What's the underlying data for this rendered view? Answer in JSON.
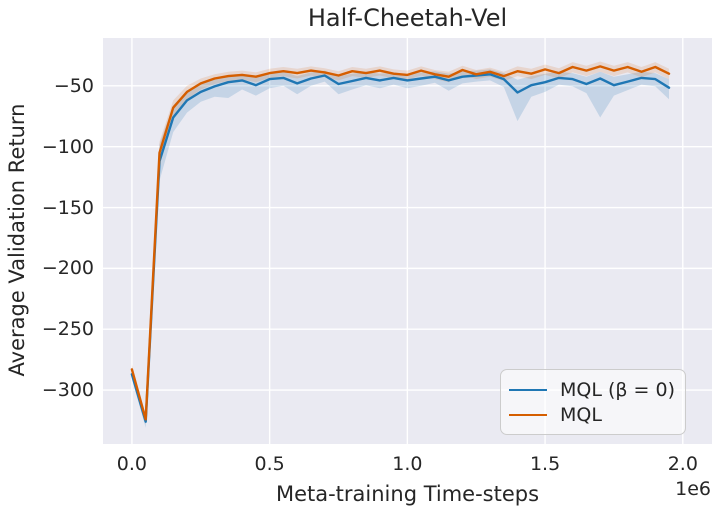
{
  "colors": {
    "plot_background": "#eaeaf2",
    "grid": "#ffffff",
    "text": "#262626",
    "legend_border": "#cccccc",
    "series_blue": "#1f77b4",
    "series_orange": "#d55e00"
  },
  "chart_data": {
    "type": "line",
    "title": "Half-Cheetah-Vel",
    "xlabel": "Meta-training Time-steps",
    "ylabel": "Average Validation Return",
    "x_offset_label": "1e6",
    "x_units_multiplier": 1000000,
    "grid": true,
    "legend_position": "lower right",
    "x_ticks": [
      0.0,
      0.5,
      1.0,
      1.5,
      2.0
    ],
    "y_ticks": [
      -50,
      -100,
      -150,
      -200,
      -250,
      -300
    ],
    "xlim": [
      -0.105,
      2.106
    ],
    "ylim": [
      -344.3,
      -10.7
    ],
    "x": [
      0,
      0.05,
      0.1,
      0.15,
      0.2,
      0.25,
      0.3,
      0.35,
      0.4,
      0.45,
      0.5,
      0.55,
      0.6,
      0.65,
      0.7,
      0.75,
      0.8,
      0.85,
      0.9,
      0.95,
      1.0,
      1.05,
      1.1,
      1.15,
      1.2,
      1.25,
      1.3,
      1.35,
      1.4,
      1.45,
      1.5,
      1.55,
      1.6,
      1.65,
      1.7,
      1.75,
      1.8,
      1.85,
      1.9,
      1.95
    ],
    "series": [
      {
        "name": "MQL (β = 0)",
        "color": "#1f77b4",
        "band_opacity": 0.18,
        "values": [
          -287,
          -326,
          -112,
          -76,
          -62,
          -55,
          -50.5,
          -47,
          -45.5,
          -49.5,
          -44.5,
          -43.5,
          -48,
          -44,
          -41.5,
          -48.5,
          -46,
          -43.5,
          -45.5,
          -43.5,
          -45.5,
          -44,
          -42.5,
          -45.5,
          -42.5,
          -41.5,
          -40.5,
          -44.5,
          -55.5,
          -49.5,
          -47,
          -43.5,
          -44.5,
          -48.5,
          -44,
          -49.5,
          -46.5,
          -43.5,
          -44.5,
          -51.5
        ],
        "band_upper": [
          -283,
          -321,
          -98,
          -66,
          -54,
          -48,
          -44,
          -41,
          -40,
          -43,
          -39,
          -38.5,
          -42,
          -39,
          -37.5,
          -42,
          -40,
          -38.5,
          -40,
          -39,
          -40.5,
          -39,
          -38,
          -40,
          -38,
          -37.5,
          -36.5,
          -39.5,
          -45,
          -42,
          -40,
          -38.5,
          -39.5,
          -42.5,
          -38.5,
          -42.5,
          -40.5,
          -38.5,
          -39.5,
          -44.5
        ],
        "band_lower": [
          -291,
          -331,
          -128,
          -88,
          -72,
          -63,
          -59,
          -60,
          -53,
          -58,
          -52,
          -50,
          -57,
          -50,
          -46.5,
          -57,
          -53,
          -49.5,
          -52,
          -49,
          -52,
          -50,
          -47.5,
          -54,
          -48,
          -46.5,
          -45.5,
          -51,
          -79,
          -59,
          -55,
          -49,
          -50.5,
          -56,
          -76,
          -58,
          -53.5,
          -49,
          -50.5,
          -61
        ]
      },
      {
        "name": "MQL",
        "color": "#d55e00",
        "band_opacity": 0.15,
        "values": [
          -283,
          -324,
          -105,
          -68,
          -55,
          -48,
          -44,
          -42,
          -41,
          -42.5,
          -39.5,
          -38,
          -39.5,
          -37.5,
          -39,
          -41.5,
          -38,
          -39.5,
          -37.5,
          -40,
          -41,
          -37.5,
          -40.5,
          -42.5,
          -37,
          -40.5,
          -38.5,
          -42,
          -38,
          -40,
          -36.5,
          -39.5,
          -34.5,
          -37.5,
          -34,
          -37.5,
          -34.5,
          -38.5,
          -34.5,
          -40
        ],
        "band_upper": [
          -279,
          -320,
          -96,
          -62,
          -50,
          -44,
          -40.5,
          -38.5,
          -37.5,
          -39,
          -36,
          -34.5,
          -36,
          -34,
          -35.5,
          -38,
          -34.5,
          -36,
          -34,
          -36.5,
          -37.5,
          -34,
          -37,
          -38.5,
          -33.5,
          -37,
          -35,
          -38.5,
          -34,
          -36,
          -32.5,
          -35.5,
          -30.5,
          -33.5,
          -30,
          -33.5,
          -30.5,
          -34.5,
          -30.5,
          -36
        ],
        "band_lower": [
          -287,
          -328,
          -115,
          -75,
          -61,
          -53,
          -48.5,
          -46,
          -45,
          -47,
          -43.5,
          -42,
          -44,
          -41.5,
          -43,
          -45.5,
          -42,
          -43.5,
          -41.5,
          -44,
          -45,
          -41.5,
          -44.5,
          -47,
          -41,
          -44.5,
          -42.5,
          -46,
          -42,
          -44.5,
          -41,
          -44,
          -39,
          -42,
          -38.5,
          -42,
          -39,
          -43,
          -39,
          -44.5
        ]
      }
    ]
  },
  "legend": {
    "entries": [
      {
        "label": "MQL (β = 0)",
        "color": "#1f77b4"
      },
      {
        "label": "MQL",
        "color": "#d55e00"
      }
    ]
  }
}
